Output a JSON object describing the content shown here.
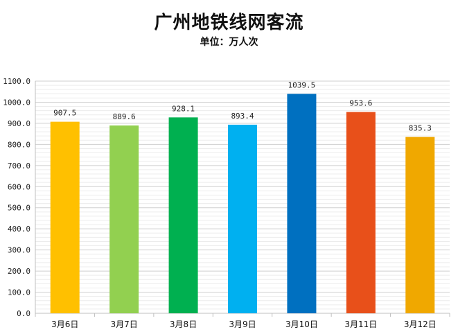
{
  "chart_data": {
    "type": "bar",
    "title": "广州地铁线网客流",
    "subtitle": "单位：万人次",
    "categories": [
      "3月6日",
      "3月7日",
      "3月8日",
      "3月9日",
      "3月10日",
      "3月11日",
      "3月12日"
    ],
    "values": [
      907.5,
      889.6,
      928.1,
      893.4,
      1039.5,
      953.6,
      835.3
    ],
    "value_labels": [
      "907.5",
      "889.6",
      "928.1",
      "893.4",
      "1039.5",
      "953.6",
      "835.3"
    ],
    "colors": [
      "#FFC000",
      "#92D050",
      "#00B050",
      "#00B0F0",
      "#0070C0",
      "#E8501A",
      "#F0A800"
    ],
    "ylim": [
      0,
      1100
    ],
    "yticks": [
      "0.0",
      "100.0",
      "200.0",
      "300.0",
      "400.0",
      "500.0",
      "600.0",
      "700.0",
      "800.0",
      "900.0",
      "1000.0",
      "1100.0"
    ],
    "grid": true,
    "legend": "none"
  }
}
